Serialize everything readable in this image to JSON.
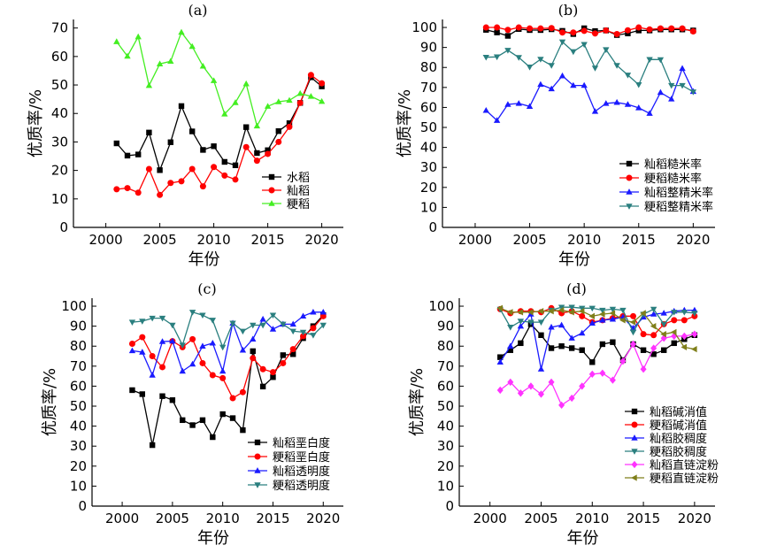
{
  "colors": {
    "black": "#000000",
    "red": "#ff0000",
    "green": "#44ee22",
    "blue": "#1a1aff",
    "teal": "#2a7f7f",
    "magenta": "#ff33ff",
    "olive": "#7f7f1a"
  },
  "chart_data": [
    {
      "id": "a",
      "type": "line",
      "title": "(a)",
      "xlabel": "年份",
      "ylabel": "优质率/%",
      "xlim": [
        1997,
        2022
      ],
      "ylim": [
        0,
        73
      ],
      "xticks": [
        2000,
        2005,
        2010,
        2015,
        2020
      ],
      "yticks": [
        0,
        10,
        20,
        30,
        40,
        50,
        60,
        70
      ],
      "legend_position": "lower-right",
      "x": [
        2001,
        2002,
        2003,
        2004,
        2005,
        2006,
        2007,
        2008,
        2009,
        2010,
        2011,
        2012,
        2013,
        2014,
        2015,
        2016,
        2017,
        2018,
        2019,
        2020
      ],
      "series": [
        {
          "name": "水稻",
          "color_key": "black",
          "marker": "square",
          "values": [
            29.5,
            25.2,
            25.6,
            33.3,
            20.1,
            29.9,
            42.6,
            33.7,
            27.2,
            28.5,
            23.0,
            21.8,
            35.2,
            26.1,
            27.1,
            33.8,
            36.6,
            43.7,
            52.7,
            49.5
          ]
        },
        {
          "name": "籼稻",
          "color_key": "red",
          "marker": "circle",
          "values": [
            13.4,
            13.8,
            12.2,
            20.5,
            11.4,
            15.6,
            16.2,
            20.5,
            14.4,
            21.2,
            18.2,
            16.8,
            28.2,
            23.4,
            25.8,
            30.0,
            35.3,
            43.7,
            53.5,
            50.6
          ]
        },
        {
          "name": "粳稻",
          "color_key": "green",
          "marker": "triangle-up",
          "values": [
            65.2,
            60.1,
            66.9,
            49.8,
            57.4,
            58.3,
            68.5,
            63.5,
            56.6,
            51.5,
            39.8,
            43.8,
            50.4,
            35.6,
            42.5,
            44.1,
            44.6,
            47.0,
            46.0,
            44.2
          ]
        }
      ]
    },
    {
      "id": "b",
      "type": "line",
      "title": "(b)",
      "xlabel": "年份",
      "ylabel": "优质率/%",
      "xlim": [
        1997,
        2022
      ],
      "ylim": [
        0,
        104
      ],
      "xticks": [
        2000,
        2005,
        2010,
        2015,
        2020
      ],
      "yticks": [
        0,
        10,
        20,
        30,
        40,
        50,
        60,
        70,
        80,
        90,
        100
      ],
      "legend_position": "lower-right",
      "x": [
        2001,
        2002,
        2003,
        2004,
        2005,
        2006,
        2007,
        2008,
        2009,
        2010,
        2011,
        2012,
        2013,
        2014,
        2015,
        2016,
        2017,
        2018,
        2019,
        2020
      ],
      "series": [
        {
          "name": "籼稻糙米率",
          "color_key": "black",
          "marker": "square",
          "values": [
            98.8,
            97.5,
            95.8,
            99.2,
            98.7,
            98.7,
            99.1,
            98.3,
            96.7,
            99.6,
            98.2,
            98.5,
            96.2,
            97.0,
            98.5,
            98.5,
            99.0,
            99.0,
            99.0,
            98.5
          ]
        },
        {
          "name": "粳稻糙米率",
          "color_key": "red",
          "marker": "circle",
          "values": [
            100.0,
            100.0,
            98.8,
            100.0,
            99.5,
            99.5,
            99.7,
            97.5,
            97.5,
            98.3,
            97.0,
            98.5,
            96.7,
            98.6,
            100.0,
            99.0,
            99.5,
            99.5,
            99.5,
            98.0
          ]
        },
        {
          "name": "籼稻整精米率",
          "color_key": "blue",
          "marker": "triangle-up",
          "values": [
            58.5,
            53.5,
            61.5,
            62.0,
            60.5,
            71.5,
            69.3,
            75.8,
            71.0,
            71.0,
            58.0,
            62.0,
            62.5,
            61.5,
            59.8,
            57.0,
            67.5,
            64.2,
            79.5,
            68.0
          ]
        },
        {
          "name": "粳稻整精米率",
          "color_key": "teal",
          "marker": "triangle-down",
          "values": [
            85.1,
            85.3,
            88.6,
            85.0,
            80.2,
            84.1,
            81.0,
            92.8,
            87.9,
            91.5,
            79.7,
            88.9,
            81.0,
            76.2,
            71.4,
            84.0,
            83.9,
            71.0,
            71.0,
            67.8
          ]
        }
      ]
    },
    {
      "id": "c",
      "type": "line",
      "title": "(c)",
      "xlabel": "年份",
      "ylabel": "优质率/%",
      "xlim": [
        1997,
        2022
      ],
      "ylim": [
        0,
        104
      ],
      "xticks": [
        2000,
        2005,
        2010,
        2015,
        2020
      ],
      "yticks": [
        0,
        10,
        20,
        30,
        40,
        50,
        60,
        70,
        80,
        90,
        100
      ],
      "legend_position": "lower-right",
      "x": [
        2001,
        2002,
        2003,
        2004,
        2005,
        2006,
        2007,
        2008,
        2009,
        2010,
        2011,
        2012,
        2013,
        2014,
        2015,
        2016,
        2017,
        2018,
        2019,
        2020
      ],
      "series": [
        {
          "name": "籼稻垩白度",
          "color_key": "black",
          "marker": "square",
          "values": [
            58.0,
            56.0,
            30.5,
            55.0,
            53.0,
            43.0,
            40.5,
            43.0,
            34.5,
            46.0,
            44.0,
            38.0,
            77.5,
            59.8,
            64.5,
            75.5,
            76.0,
            84.0,
            90.0,
            95.5
          ]
        },
        {
          "name": "粳稻垩白度",
          "color_key": "red",
          "marker": "circle",
          "values": [
            81.2,
            84.5,
            75.0,
            69.5,
            82.5,
            79.5,
            83.5,
            71.5,
            65.5,
            64.0,
            54.0,
            57.0,
            74.0,
            68.5,
            67.0,
            71.5,
            78.5,
            85.0,
            89.0,
            95.0
          ]
        },
        {
          "name": "籼稻透明度",
          "color_key": "blue",
          "marker": "triangle-up",
          "values": [
            77.7,
            77.0,
            65.5,
            82.3,
            82.5,
            67.5,
            71.0,
            80.0,
            81.5,
            67.5,
            91.5,
            78.0,
            83.5,
            93.5,
            88.5,
            91.0,
            91.0,
            95.0,
            97.0,
            97.0
          ]
        },
        {
          "name": "粳稻透明度",
          "color_key": "teal",
          "marker": "triangle-down",
          "values": [
            92.0,
            92.5,
            94.0,
            94.0,
            90.5,
            80.5,
            97.0,
            95.5,
            93.0,
            79.5,
            91.5,
            87.5,
            90.5,
            90.5,
            95.5,
            91.0,
            87.5,
            87.0,
            85.5,
            90.5
          ]
        }
      ]
    },
    {
      "id": "d",
      "type": "line",
      "title": "(d)",
      "xlabel": "年份",
      "ylabel": "优质率/%",
      "xlim": [
        1997,
        2022
      ],
      "ylim": [
        0,
        104
      ],
      "xticks": [
        2000,
        2005,
        2010,
        2015,
        2020
      ],
      "yticks": [
        0,
        10,
        20,
        30,
        40,
        50,
        60,
        70,
        80,
        90,
        100
      ],
      "legend_position": "lower-right",
      "x": [
        2001,
        2002,
        2003,
        2004,
        2005,
        2006,
        2007,
        2008,
        2009,
        2010,
        2011,
        2012,
        2013,
        2014,
        2015,
        2016,
        2017,
        2018,
        2019,
        2020
      ],
      "series": [
        {
          "name": "籼稻碱消值",
          "color_key": "black",
          "marker": "square",
          "values": [
            74.5,
            78.0,
            81.5,
            91.0,
            85.5,
            79.0,
            80.0,
            79.0,
            78.0,
            72.0,
            81.0,
            82.0,
            73.0,
            81.0,
            78.0,
            76.0,
            78.0,
            81.5,
            83.5,
            85.5
          ]
        },
        {
          "name": "粳稻碱消值",
          "color_key": "red",
          "marker": "circle",
          "values": [
            98.5,
            96.5,
            97.5,
            97.5,
            97.0,
            99.0,
            96.5,
            97.5,
            95.0,
            92.0,
            93.0,
            94.0,
            95.0,
            95.0,
            86.0,
            85.5,
            91.0,
            93.0,
            93.0,
            95.0
          ]
        },
        {
          "name": "籼稻胶稠度",
          "color_key": "blue",
          "marker": "triangle-up",
          "values": [
            72.0,
            80.0,
            90.0,
            96.0,
            68.5,
            89.5,
            90.5,
            84.0,
            86.5,
            91.5,
            93.0,
            93.5,
            94.5,
            89.0,
            94.5,
            96.0,
            96.5,
            97.5,
            98.0,
            98.0
          ]
        },
        {
          "name": "粳稻胶稠度",
          "color_key": "teal",
          "marker": "triangle-down",
          "values": [
            98.5,
            89.5,
            92.5,
            92.0,
            92.0,
            98.0,
            99.5,
            99.5,
            99.0,
            99.0,
            98.0,
            98.5,
            98.0,
            87.0,
            96.0,
            98.5,
            91.0,
            97.0,
            97.0,
            96.5
          ]
        },
        {
          "name": "籼稻直链淀粉",
          "color_key": "magenta",
          "marker": "diamond",
          "values": [
            58.0,
            62.0,
            56.5,
            60.0,
            56.0,
            62.0,
            50.5,
            54.0,
            60.0,
            66.0,
            66.5,
            63.0,
            72.5,
            81.0,
            68.5,
            79.0,
            84.0,
            85.0,
            85.0,
            86.0
          ]
        },
        {
          "name": "粳稻直链淀粉",
          "color_key": "olive",
          "marker": "triangle-left",
          "values": [
            99.0,
            97.0,
            97.0,
            97.0,
            97.5,
            97.5,
            98.0,
            97.0,
            97.5,
            95.0,
            96.0,
            96.5,
            93.0,
            92.0,
            96.5,
            90.0,
            86.0,
            87.0,
            79.5,
            78.5
          ]
        }
      ]
    }
  ]
}
